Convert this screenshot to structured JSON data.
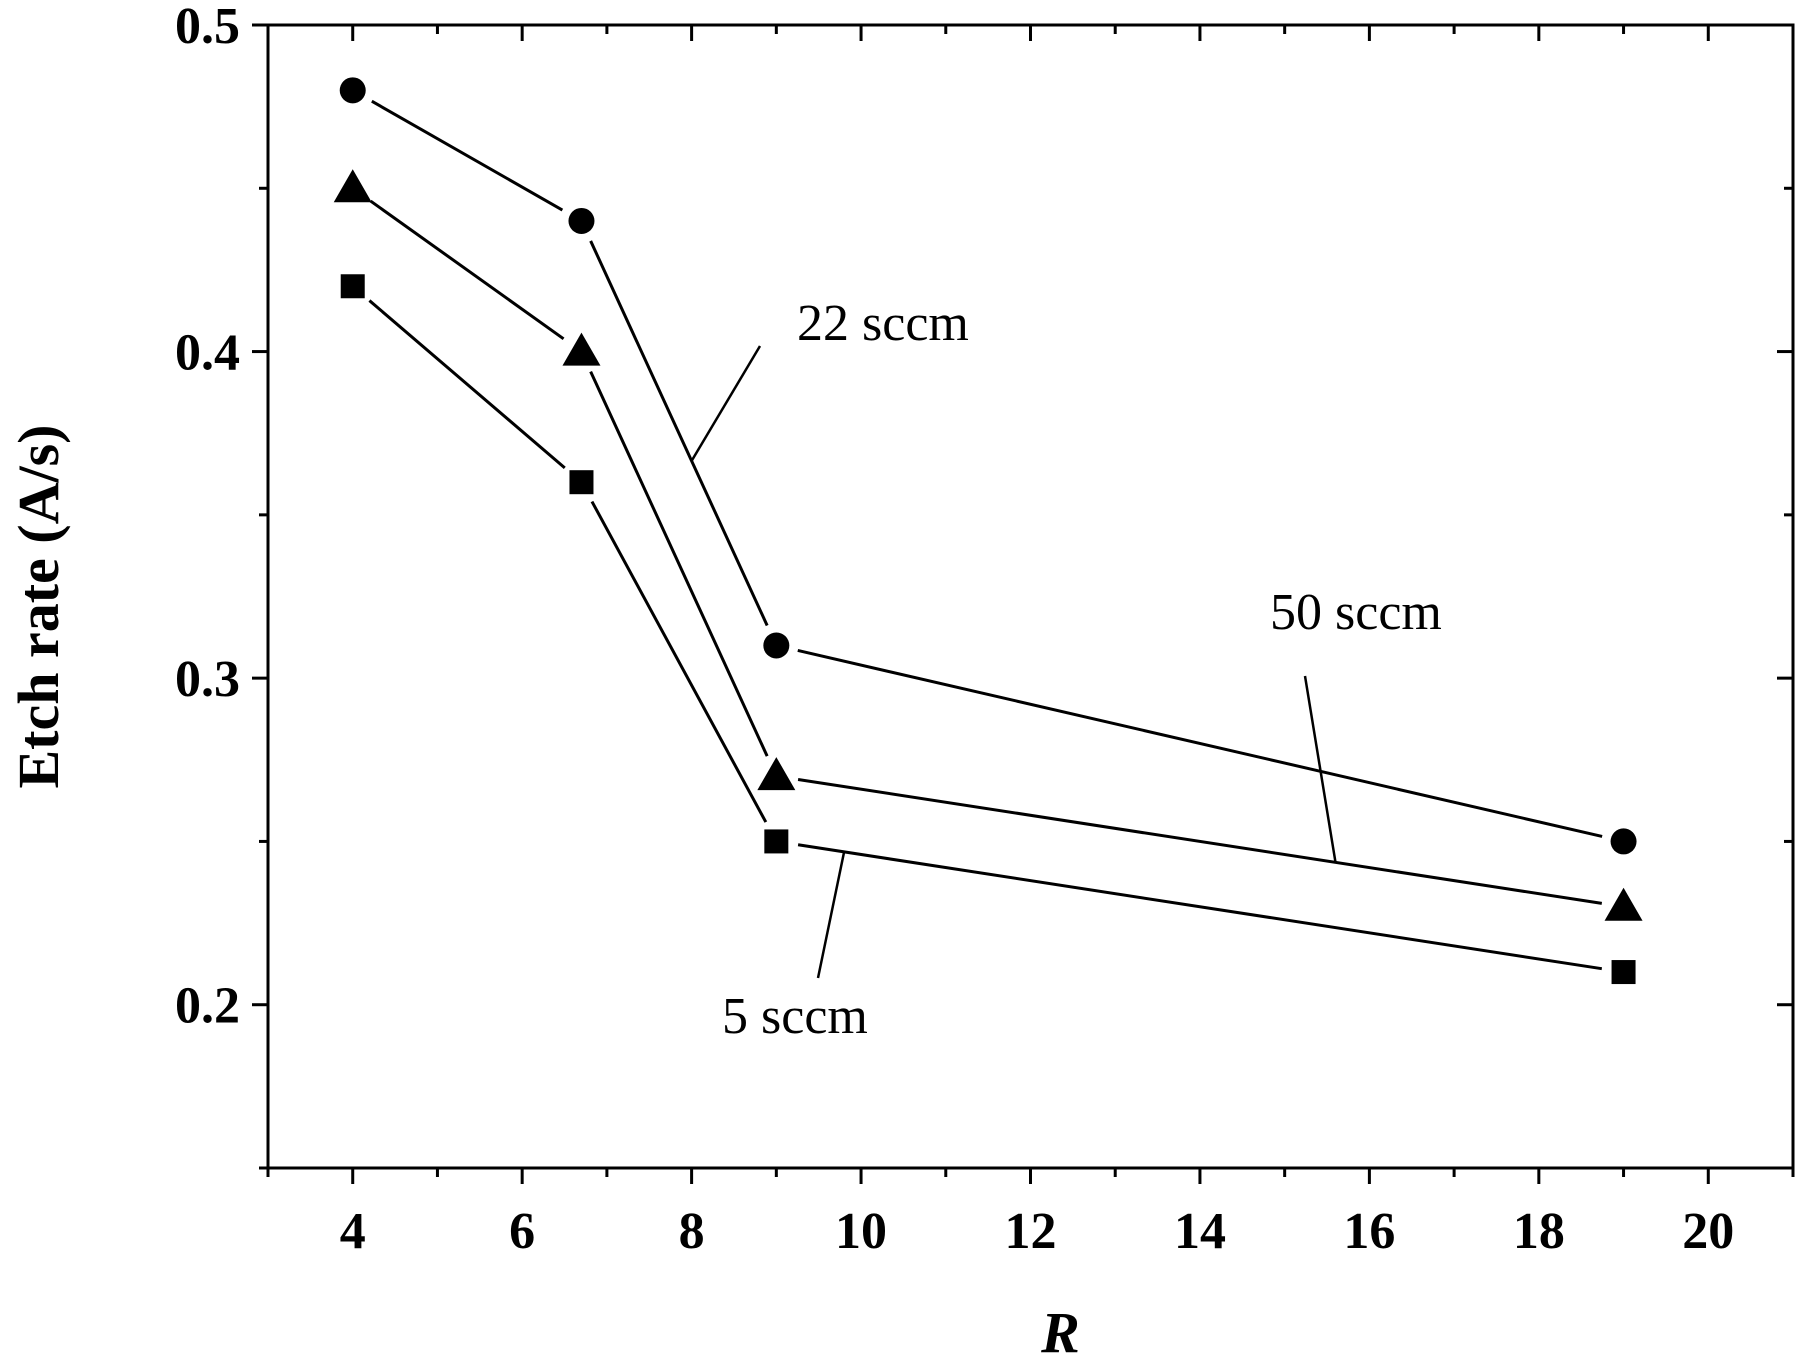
{
  "chart_data": {
    "type": "line",
    "xlabel": "R",
    "ylabel": "Etch rate (A/s)",
    "xlim": [
      3,
      21
    ],
    "ylim": [
      0.15,
      0.5
    ],
    "x_ticks": [
      4,
      6,
      8,
      10,
      12,
      14,
      16,
      18,
      20
    ],
    "x_tick_labels": [
      "4",
      "6",
      "8",
      "10",
      "12",
      "14",
      "16",
      "18",
      "20"
    ],
    "y_ticks": [
      0.2,
      0.3,
      0.4,
      0.5
    ],
    "y_tick_labels": [
      "0.2",
      "0.3",
      "0.4",
      "0.5"
    ],
    "grid": false,
    "x": [
      4,
      6.7,
      9,
      19
    ],
    "series": [
      {
        "marker": "circle",
        "values": [
          0.48,
          0.44,
          0.31,
          0.25
        ]
      },
      {
        "marker": "triangle",
        "values": [
          0.45,
          0.4,
          0.27,
          0.23
        ]
      },
      {
        "marker": "square",
        "values": [
          0.42,
          0.36,
          0.25,
          0.21
        ]
      }
    ],
    "annotations": [
      {
        "text": "22 sccm",
        "target_series": 0,
        "target_x": 8.0
      },
      {
        "text": "50 sccm",
        "target_series": 1,
        "target_x": 15.6
      },
      {
        "text": "5 sccm",
        "target_series": 2,
        "target_x": 9.8
      }
    ]
  }
}
